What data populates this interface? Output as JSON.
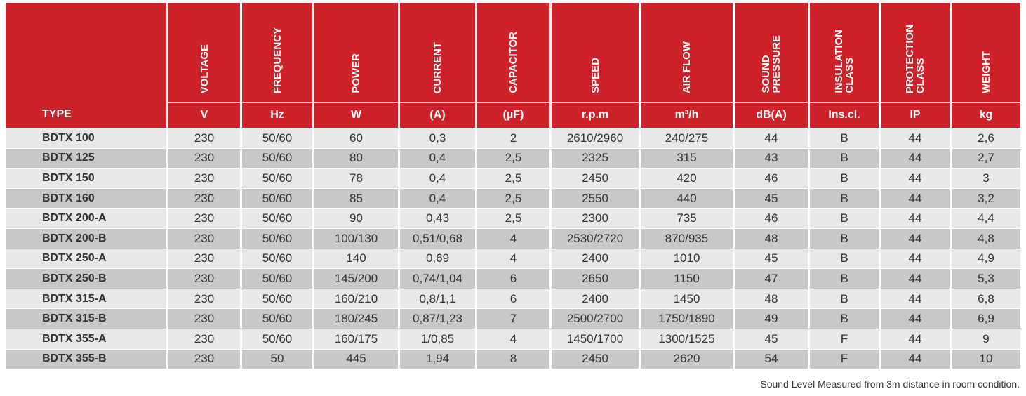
{
  "table": {
    "type_header": "TYPE",
    "columns": [
      {
        "name": [
          "VOLTAGE"
        ],
        "unit": "V"
      },
      {
        "name": [
          "FREQUENCY"
        ],
        "unit": "Hz"
      },
      {
        "name": [
          "POWER"
        ],
        "unit": "W"
      },
      {
        "name": [
          "CURRENT"
        ],
        "unit": "(A)"
      },
      {
        "name": [
          "CAPACITOR"
        ],
        "unit": "(µF)"
      },
      {
        "name": [
          "SPEED"
        ],
        "unit": "r.p.m"
      },
      {
        "name": [
          "AIR FLOW"
        ],
        "unit": "m³/h"
      },
      {
        "name": [
          "SOUND",
          "PRESSURE"
        ],
        "unit": "dB(A)"
      },
      {
        "name": [
          "INSULATION",
          "CLASS"
        ],
        "unit": "Ins.cl."
      },
      {
        "name": [
          "PROTECTION",
          "CLASS"
        ],
        "unit": "IP"
      },
      {
        "name": [
          "WEIGHT"
        ],
        "unit": "kg"
      }
    ],
    "rows": [
      [
        "BDTX 100",
        "230",
        "50/60",
        "60",
        "0,3",
        "2",
        "2610/2960",
        "240/275",
        "44",
        "B",
        "44",
        "2,6"
      ],
      [
        "BDTX 125",
        "230",
        "50/60",
        "80",
        "0,4",
        "2,5",
        "2325",
        "315",
        "43",
        "B",
        "44",
        "2,7"
      ],
      [
        "BDTX 150",
        "230",
        "50/60",
        "78",
        "0,4",
        "2,5",
        "2450",
        "420",
        "46",
        "B",
        "44",
        "3"
      ],
      [
        "BDTX 160",
        "230",
        "50/60",
        "85",
        "0,4",
        "2,5",
        "2550",
        "440",
        "45",
        "B",
        "44",
        "3,2"
      ],
      [
        "BDTX 200-A",
        "230",
        "50/60",
        "90",
        "0,43",
        "2,5",
        "2300",
        "735",
        "46",
        "B",
        "44",
        "4,4"
      ],
      [
        "BDTX 200-B",
        "230",
        "50/60",
        "100/130",
        "0,51/0,68",
        "4",
        "2530/2720",
        "870/935",
        "48",
        "B",
        "44",
        "4,8"
      ],
      [
        "BDTX 250-A",
        "230",
        "50/60",
        "140",
        "0,69",
        "4",
        "2400",
        "1010",
        "45",
        "B",
        "44",
        "4,9"
      ],
      [
        "BDTX 250-B",
        "230",
        "50/60",
        "145/200",
        "0,74/1,04",
        "6",
        "2650",
        "1150",
        "47",
        "B",
        "44",
        "5,3"
      ],
      [
        "BDTX 315-A",
        "230",
        "50/60",
        "160/210",
        "0,8/1,1",
        "6",
        "2400",
        "1450",
        "48",
        "B",
        "44",
        "6,8"
      ],
      [
        "BDTX 315-B",
        "230",
        "50/60",
        "180/245",
        "0,87/1,23",
        "7",
        "2500/2700",
        "1750/1890",
        "49",
        "B",
        "44",
        "6,9"
      ],
      [
        "BDTX 355-A",
        "230",
        "50/60",
        "160/175",
        "1/0,85",
        "4",
        "1450/1700",
        "1300/1525",
        "45",
        "F",
        "44",
        "9"
      ],
      [
        "BDTX 355-B",
        "230",
        "50",
        "445",
        "1,94",
        "8",
        "2450",
        "2620",
        "54",
        "F",
        "44",
        "10"
      ]
    ]
  },
  "footnote": "Sound Level Measured from 3m distance in room condition."
}
